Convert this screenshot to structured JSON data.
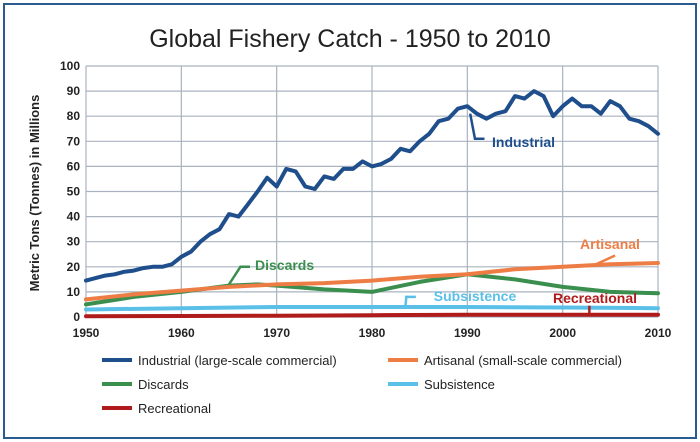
{
  "chart_data": {
    "type": "line",
    "title": "Global Fishery Catch - 1950 to 2010",
    "xlabel": "",
    "ylabel": "Metric Tons (Tonnes) in Millions",
    "xlim": [
      1950,
      2010
    ],
    "ylim": [
      0,
      100
    ],
    "xticks": [
      1950,
      1960,
      1970,
      1980,
      1990,
      2000,
      2010
    ],
    "yticks": [
      0,
      10,
      20,
      30,
      40,
      50,
      60,
      70,
      80,
      90,
      100
    ],
    "grid": true,
    "legend_position": "bottom",
    "series": [
      {
        "name": "Industrial (large-scale commercial)",
        "label": "Industrial",
        "color": "#1f4e8c",
        "x": [
          1950,
          1951,
          1952,
          1953,
          1954,
          1955,
          1956,
          1957,
          1958,
          1959,
          1960,
          1961,
          1962,
          1963,
          1964,
          1965,
          1966,
          1967,
          1968,
          1969,
          1970,
          1971,
          1972,
          1973,
          1974,
          1975,
          1976,
          1977,
          1978,
          1979,
          1980,
          1981,
          1982,
          1983,
          1984,
          1985,
          1986,
          1987,
          1988,
          1989,
          1990,
          1991,
          1992,
          1993,
          1994,
          1995,
          1996,
          1997,
          1998,
          1999,
          2000,
          2001,
          2002,
          2003,
          2004,
          2005,
          2006,
          2007,
          2008,
          2009,
          2010
        ],
        "y": [
          14.5,
          15.5,
          16.5,
          17,
          18,
          18.5,
          19.5,
          20,
          20,
          21,
          24,
          26,
          30,
          33,
          35,
          41,
          40,
          45,
          50,
          55.5,
          52,
          59,
          58,
          52,
          51,
          56,
          55,
          59,
          59,
          62,
          60,
          61,
          63,
          67,
          66,
          70,
          73,
          78,
          79,
          83,
          84,
          81,
          79,
          81,
          82,
          88,
          87,
          90,
          88,
          80,
          84,
          87,
          84,
          84,
          81,
          86,
          84,
          79,
          78,
          76,
          73
        ]
      },
      {
        "name": "Artisanal (small-scale commercial)",
        "label": "Artisanal",
        "color": "#ed7d45",
        "x": [
          1950,
          1955,
          1960,
          1965,
          1970,
          1975,
          1980,
          1985,
          1990,
          1995,
          2000,
          2005,
          2010
        ],
        "y": [
          7,
          9,
          10.5,
          12,
          13,
          13.5,
          14.5,
          16,
          17,
          19,
          20,
          21,
          21.5
        ]
      },
      {
        "name": "Discards",
        "label": "Discards",
        "color": "#3a8f4f",
        "x": [
          1950,
          1955,
          1960,
          1965,
          1968,
          1970,
          1975,
          1980,
          1985,
          1990,
          1995,
          2000,
          2005,
          2010
        ],
        "y": [
          5,
          8,
          10,
          12.5,
          13,
          12.5,
          11,
          10,
          14,
          17,
          15,
          12,
          10,
          9.5
        ]
      },
      {
        "name": "Subsistence",
        "label": "Subsistence",
        "color": "#5bc0e8",
        "x": [
          1950,
          1960,
          1970,
          1980,
          1990,
          2000,
          2010
        ],
        "y": [
          3,
          3.5,
          4,
          4,
          4,
          3.8,
          3.5
        ]
      },
      {
        "name": "Recreational",
        "label": "Recreational",
        "color": "#b01c1c",
        "x": [
          1950,
          1960,
          1970,
          1980,
          1990,
          2000,
          2010
        ],
        "y": [
          0.3,
          0.4,
          0.5,
          0.7,
          0.9,
          0.9,
          0.9
        ]
      }
    ]
  }
}
